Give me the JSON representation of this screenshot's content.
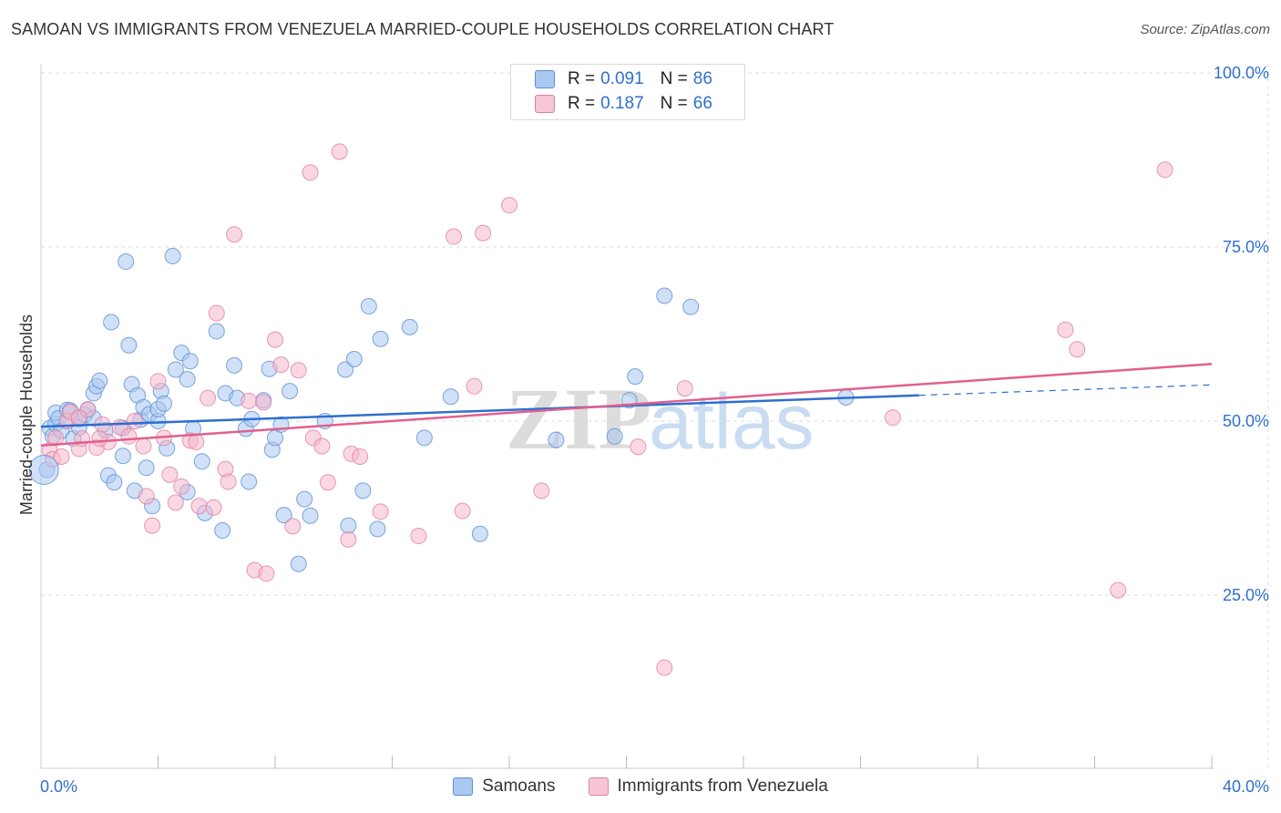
{
  "title": "SAMOAN VS IMMIGRANTS FROM VENEZUELA MARRIED-COUPLE HOUSEHOLDS CORRELATION CHART",
  "source": "Source: ZipAtlas.com",
  "watermark": {
    "zip": "ZIP",
    "atlas": "atlas"
  },
  "legend": {
    "samoans": {
      "r_label": "R =",
      "r_value": "0.091",
      "n_label": "N =",
      "n_value": "86"
    },
    "venezuela": {
      "r_label": "R =",
      "r_value": "0.187",
      "n_label": "N =",
      "n_value": "66"
    }
  },
  "colors": {
    "samoans_fill": "#aac8f0",
    "samoans_stroke": "#5b8fd6",
    "samoans_line": "#2f6fce",
    "venezuela_fill": "#f6b8cc",
    "venezuela_stroke": "#e07fa0",
    "venezuela_line": "#e0608e",
    "axis_label": "#2f6fce",
    "grid": "#dddddd"
  },
  "chart_data": {
    "type": "scatter",
    "title": "SAMOAN VS IMMIGRANTS FROM VENEZUELA MARRIED-COUPLE HOUSEHOLDS CORRELATION CHART",
    "xlabel": "",
    "ylabel": "Married-couple Households",
    "xlim": [
      0,
      40
    ],
    "ylim": [
      0,
      105
    ],
    "x_tick_labels": [
      "0.0%",
      "40.0%"
    ],
    "y_ticks": [
      25,
      50,
      75,
      100
    ],
    "y_tick_labels": [
      "25.0%",
      "50.0%",
      "75.0%",
      "100.0%"
    ],
    "grid": true,
    "series": [
      {
        "name": "Samoans",
        "r": 0.091,
        "n": 86,
        "trend": {
          "x0": 0,
          "y0": 49.2,
          "x1": 30,
          "y1": 53.7,
          "dash_to_x": 40,
          "dash_to_y": 55.2
        },
        "points": [
          [
            0.2,
            43.0
          ],
          [
            0.3,
            49.0
          ],
          [
            0.4,
            47.8
          ],
          [
            0.5,
            49.6
          ],
          [
            0.5,
            51.2
          ],
          [
            0.6,
            50.4
          ],
          [
            0.7,
            48.6
          ],
          [
            0.9,
            50.0
          ],
          [
            0.9,
            51.6
          ],
          [
            1.0,
            51.5
          ],
          [
            1.1,
            47.5
          ],
          [
            1.3,
            50.3
          ],
          [
            1.3,
            49.1
          ],
          [
            1.5,
            50.9
          ],
          [
            1.6,
            51.6
          ],
          [
            1.8,
            50.4
          ],
          [
            1.8,
            54.0
          ],
          [
            1.9,
            55.0
          ],
          [
            2.0,
            55.8
          ],
          [
            2.3,
            42.2
          ],
          [
            2.4,
            64.2
          ],
          [
            2.5,
            41.2
          ],
          [
            2.8,
            49.0
          ],
          [
            2.8,
            45.0
          ],
          [
            2.9,
            72.9
          ],
          [
            3.0,
            60.9
          ],
          [
            3.1,
            55.3
          ],
          [
            3.2,
            40.0
          ],
          [
            3.3,
            53.7
          ],
          [
            3.4,
            50.2
          ],
          [
            3.5,
            52.0
          ],
          [
            3.6,
            43.3
          ],
          [
            3.7,
            51.0
          ],
          [
            3.8,
            37.8
          ],
          [
            4.0,
            50.0
          ],
          [
            4.0,
            51.7
          ],
          [
            4.1,
            54.3
          ],
          [
            4.2,
            52.5
          ],
          [
            4.3,
            46.1
          ],
          [
            4.5,
            73.7
          ],
          [
            4.6,
            57.4
          ],
          [
            4.8,
            59.8
          ],
          [
            5.0,
            56.0
          ],
          [
            5.0,
            39.8
          ],
          [
            5.1,
            58.6
          ],
          [
            5.2,
            48.9
          ],
          [
            5.5,
            44.2
          ],
          [
            5.6,
            36.8
          ],
          [
            6.0,
            62.9
          ],
          [
            6.2,
            34.3
          ],
          [
            6.3,
            54.0
          ],
          [
            6.6,
            58.0
          ],
          [
            6.7,
            53.3
          ],
          [
            7.0,
            48.9
          ],
          [
            7.1,
            41.3
          ],
          [
            7.2,
            50.3
          ],
          [
            7.6,
            53.0
          ],
          [
            7.8,
            57.5
          ],
          [
            7.9,
            45.9
          ],
          [
            8.0,
            47.6
          ],
          [
            8.2,
            49.5
          ],
          [
            8.3,
            36.5
          ],
          [
            8.5,
            54.3
          ],
          [
            8.8,
            29.5
          ],
          [
            9.0,
            38.8
          ],
          [
            9.2,
            36.4
          ],
          [
            9.7,
            50.0
          ],
          [
            10.4,
            57.4
          ],
          [
            10.5,
            35.0
          ],
          [
            10.7,
            58.9
          ],
          [
            11.0,
            40.0
          ],
          [
            11.2,
            66.5
          ],
          [
            11.5,
            34.5
          ],
          [
            11.6,
            61.8
          ],
          [
            12.6,
            63.5
          ],
          [
            13.1,
            47.6
          ],
          [
            14.0,
            53.5
          ],
          [
            15.0,
            33.8
          ],
          [
            17.6,
            47.3
          ],
          [
            19.6,
            47.8
          ],
          [
            20.1,
            53.0
          ],
          [
            20.3,
            56.4
          ],
          [
            21.3,
            68.0
          ],
          [
            22.2,
            66.4
          ],
          [
            27.5,
            53.4
          ],
          [
            2.2,
            48.7
          ]
        ]
      },
      {
        "name": "Immigrants from Venezuela",
        "r": 0.187,
        "n": 66,
        "trend": {
          "x0": 0,
          "y0": 46.5,
          "x1": 40,
          "y1": 58.2
        },
        "points": [
          [
            0.3,
            45.8
          ],
          [
            0.4,
            44.5
          ],
          [
            0.5,
            47.6
          ],
          [
            0.7,
            44.9
          ],
          [
            0.9,
            50.0
          ],
          [
            1.0,
            51.3
          ],
          [
            1.3,
            46.0
          ],
          [
            1.4,
            47.5
          ],
          [
            1.6,
            51.7
          ],
          [
            1.9,
            46.2
          ],
          [
            2.1,
            49.5
          ],
          [
            2.3,
            47.0
          ],
          [
            2.7,
            49.1
          ],
          [
            3.0,
            47.8
          ],
          [
            3.2,
            50.0
          ],
          [
            3.5,
            46.4
          ],
          [
            3.6,
            39.2
          ],
          [
            3.8,
            35.0
          ],
          [
            4.0,
            55.7
          ],
          [
            4.2,
            47.6
          ],
          [
            4.4,
            42.3
          ],
          [
            4.6,
            38.3
          ],
          [
            4.8,
            40.6
          ],
          [
            5.1,
            47.2
          ],
          [
            5.3,
            47.0
          ],
          [
            5.4,
            37.8
          ],
          [
            5.7,
            53.3
          ],
          [
            5.9,
            37.6
          ],
          [
            6.0,
            65.5
          ],
          [
            6.3,
            43.1
          ],
          [
            6.4,
            41.3
          ],
          [
            6.6,
            76.8
          ],
          [
            7.1,
            52.9
          ],
          [
            7.3,
            28.6
          ],
          [
            7.6,
            52.7
          ],
          [
            7.7,
            28.1
          ],
          [
            8.0,
            61.7
          ],
          [
            8.2,
            58.1
          ],
          [
            8.6,
            34.9
          ],
          [
            8.8,
            57.3
          ],
          [
            9.2,
            85.7
          ],
          [
            9.3,
            47.6
          ],
          [
            9.6,
            46.4
          ],
          [
            9.8,
            41.2
          ],
          [
            10.2,
            88.7
          ],
          [
            10.5,
            33.0
          ],
          [
            10.6,
            45.3
          ],
          [
            10.9,
            44.9
          ],
          [
            11.6,
            37.0
          ],
          [
            12.9,
            33.5
          ],
          [
            14.1,
            76.5
          ],
          [
            14.4,
            37.1
          ],
          [
            14.8,
            55.0
          ],
          [
            15.1,
            77.0
          ],
          [
            16.0,
            81.0
          ],
          [
            17.1,
            40.0
          ],
          [
            20.4,
            46.3
          ],
          [
            21.3,
            14.6
          ],
          [
            22.0,
            54.7
          ],
          [
            29.1,
            50.5
          ],
          [
            35.0,
            63.1
          ],
          [
            35.4,
            60.3
          ],
          [
            36.8,
            25.7
          ],
          [
            38.4,
            86.1
          ],
          [
            2.0,
            47.5
          ],
          [
            1.3,
            50.5
          ]
        ]
      }
    ]
  },
  "bottom_legend": {
    "samoans": "Samoans",
    "venezuela": "Immigrants from Venezuela"
  }
}
